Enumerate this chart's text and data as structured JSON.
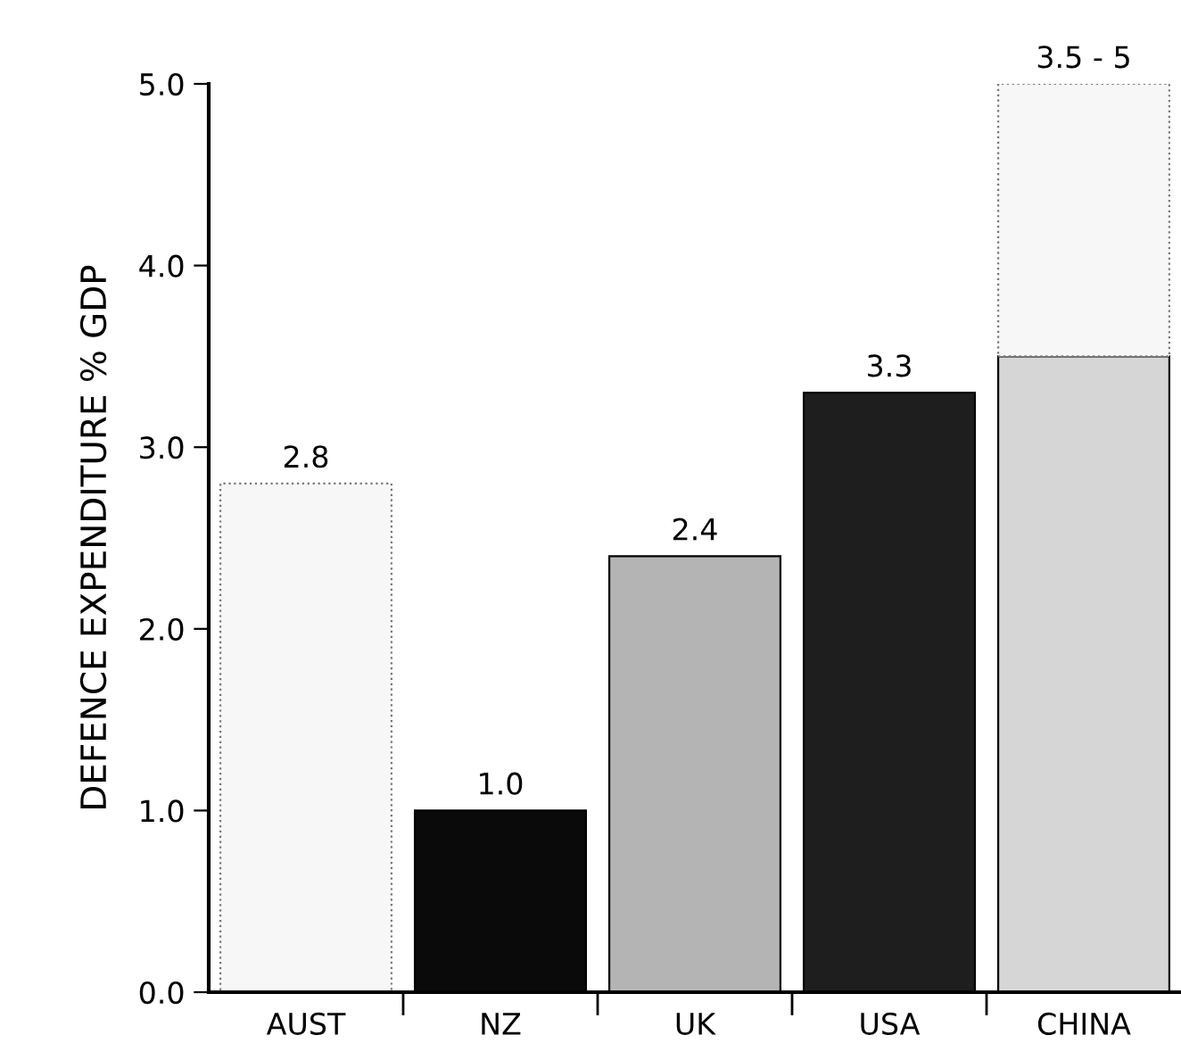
{
  "chart_data": {
    "type": "bar",
    "ylabel": "DEFENCE EXPENDITURE % GDP",
    "categories": [
      "AUST",
      "NZ",
      "UK",
      "USA",
      "CHINA"
    ],
    "stacked": true,
    "series": [
      {
        "colors": [
          "#f7f7f7",
          "#0a0a0a",
          "#b4b4b4",
          "#1e1e1e",
          "#d6d6d6"
        ],
        "values": [
          2.8,
          1.0,
          2.4,
          3.3,
          3.5
        ],
        "value_labels": [
          "2.8",
          "1.0",
          "2.4",
          "3.3",
          null
        ]
      },
      {
        "colors": [
          null,
          null,
          null,
          null,
          "#f7f7f7"
        ],
        "values": [
          null,
          null,
          null,
          null,
          1.5
        ]
      }
    ],
    "annotations": [
      {
        "text": "3.5 - 5",
        "x": "CHINA",
        "y": 5.0
      }
    ],
    "ylim": [
      0,
      5.0
    ],
    "yticks": [
      {
        "value": 0,
        "label": "0.0"
      },
      {
        "value": 1,
        "label": "1.0"
      },
      {
        "value": 2,
        "label": "2.0"
      },
      {
        "value": 3,
        "label": "3.0"
      },
      {
        "value": 4,
        "label": "4.0"
      },
      {
        "value": 5,
        "label": "5.0"
      }
    ],
    "grid": false,
    "legend": false
  }
}
